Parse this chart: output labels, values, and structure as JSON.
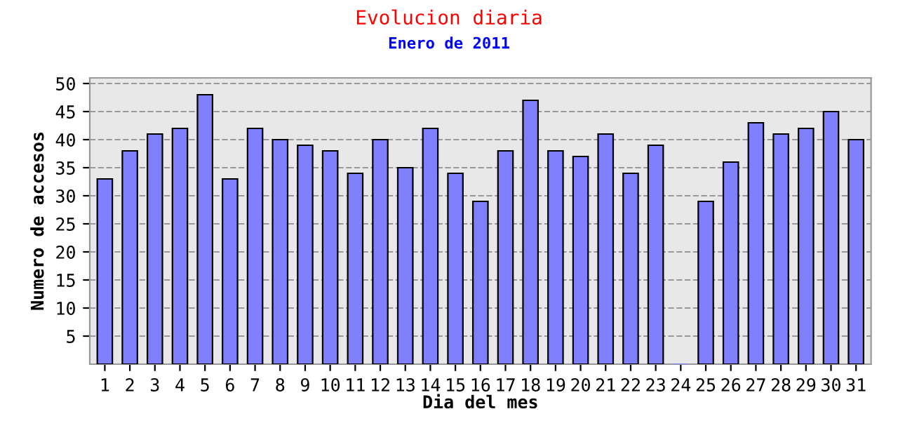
{
  "chart_data": {
    "type": "bar",
    "title": "Evolucion diaria",
    "subtitle": "Enero de 2011",
    "xlabel": "Dia del mes",
    "ylabel": "Numero de accesos",
    "categories": [
      "1",
      "2",
      "3",
      "4",
      "5",
      "6",
      "7",
      "8",
      "9",
      "10",
      "11",
      "12",
      "13",
      "14",
      "15",
      "16",
      "17",
      "18",
      "19",
      "20",
      "21",
      "22",
      "23",
      "24",
      "25",
      "26",
      "27",
      "28",
      "29",
      "30",
      "31"
    ],
    "values": [
      33,
      38,
      41,
      42,
      48,
      33,
      42,
      40,
      39,
      38,
      34,
      40,
      35,
      42,
      34,
      29,
      38,
      47,
      38,
      37,
      41,
      34,
      39,
      0,
      29,
      36,
      43,
      41,
      42,
      45,
      40
    ],
    "color": "#8080ff",
    "ylim": [
      0,
      51
    ],
    "yticks": [
      5,
      10,
      15,
      20,
      25,
      30,
      35,
      40,
      45,
      50
    ],
    "grid": "y",
    "legend": false
  }
}
